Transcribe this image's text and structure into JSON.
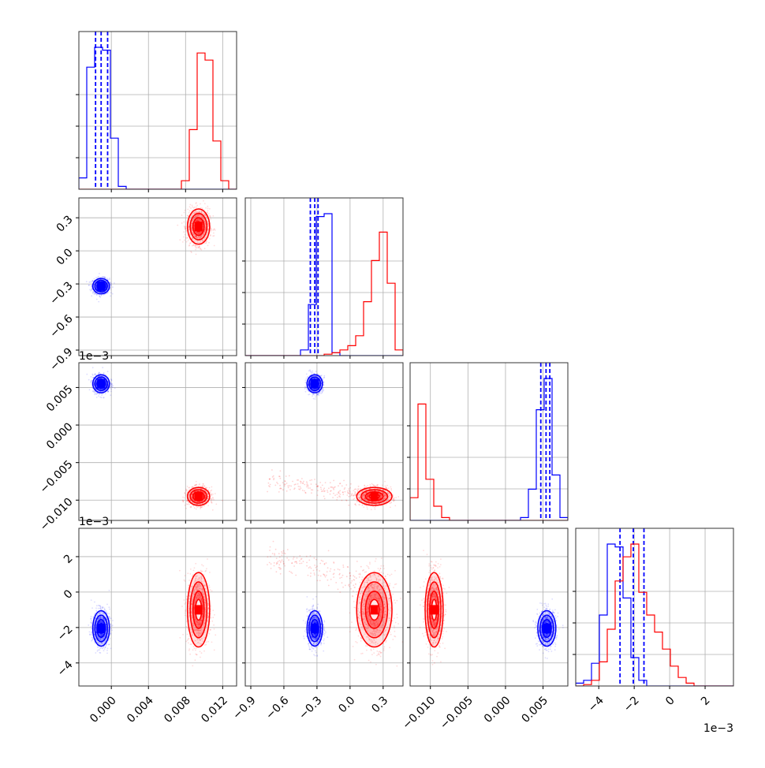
{
  "chart_data": {
    "type": "corner",
    "description_free": true,
    "parameters": [
      {
        "range": [
          -0.0035,
          0.0135
        ],
        "ticks": [
          0.0,
          0.004,
          0.008,
          0.012
        ],
        "tick_labels": [
          "0.000",
          "0.004",
          "0.008",
          "0.012"
        ],
        "offset_text": ""
      },
      {
        "range": [
          -0.95,
          0.48
        ],
        "ticks": [
          -0.9,
          -0.6,
          -0.3,
          0.0,
          0.3
        ],
        "tick_labels": [
          "−0.9",
          "−0.6",
          "−0.3",
          "0.0",
          "0.3"
        ],
        "offset_text": ""
      },
      {
        "range": [
          -0.0127,
          0.0083
        ],
        "ticks": [
          -0.01,
          -0.005,
          0.0,
          0.005
        ],
        "tick_labels": [
          "−0.010",
          "−0.005",
          "0.000",
          "0.005"
        ],
        "offset_text": "1e−3"
      },
      {
        "range": [
          -5.3,
          3.6
        ],
        "ticks": [
          -4,
          -2,
          0,
          2
        ],
        "tick_labels": [
          "−4",
          "−2",
          "0",
          "2"
        ],
        "offset_text": "1e−3"
      }
    ],
    "series": [
      {
        "color": "#0000ff",
        "means": [
          -0.0011,
          -0.32,
          0.0055,
          -2.05
        ],
        "sds": [
          0.00045,
          0.035,
          0.0006,
          0.5
        ],
        "quantile_lines": [
          [
            -0.0017,
            -0.0011,
            -0.0004
          ],
          [
            -0.36,
            -0.32,
            -0.29
          ],
          [
            0.0047,
            0.0054,
            0.0059
          ],
          [
            -2.8,
            -2.05,
            -1.45
          ]
        ],
        "hist_heights": [
          [
            0.08,
            0.86,
            1.0,
            0.98,
            0.36,
            0.02,
            0.0,
            0.0,
            0.0,
            0.0,
            0.0,
            0.0,
            0.0,
            0.0,
            0.0,
            0.0,
            0.0,
            0.0,
            0.0,
            0.0
          ],
          [
            0.0,
            0.0,
            0.0,
            0.0,
            0.0,
            0.0,
            0.0,
            0.04,
            0.36,
            0.98,
            1.0,
            0.02,
            0.0,
            0.0,
            0.0,
            0.0,
            0.0,
            0.0,
            0.0,
            0.0
          ],
          [
            0.0,
            0.0,
            0.0,
            0.0,
            0.0,
            0.0,
            0.0,
            0.0,
            0.0,
            0.0,
            0.0,
            0.0,
            0.0,
            0.0,
            0.02,
            0.22,
            0.78,
            1.0,
            0.32,
            0.02
          ],
          [
            0.02,
            0.04,
            0.16,
            0.5,
            1.0,
            0.98,
            0.62,
            0.2,
            0.04,
            0.0,
            0.0,
            0.0,
            0.0,
            0.0,
            0.0,
            0.0,
            0.0,
            0.0,
            0.0,
            0.0
          ]
        ]
      },
      {
        "color": "#ff0000",
        "means": [
          0.0094,
          0.22,
          -0.0095,
          -1.0
        ],
        "sds": [
          0.0006,
          0.08,
          0.0006,
          1.05
        ],
        "quantile_lines": [],
        "hist_heights": [
          [
            0.0,
            0.0,
            0.0,
            0.0,
            0.0,
            0.0,
            0.0,
            0.0,
            0.0,
            0.0,
            0.0,
            0.0,
            0.0,
            0.06,
            0.42,
            0.96,
            0.91,
            0.34,
            0.06,
            0.0
          ],
          [
            0.0,
            0.0,
            0.0,
            0.0,
            0.0,
            0.0,
            0.0,
            0.0,
            0.0,
            0.0,
            0.01,
            0.02,
            0.04,
            0.07,
            0.14,
            0.38,
            0.67,
            0.87,
            0.51,
            0.04
          ],
          [
            0.16,
            0.82,
            0.29,
            0.1,
            0.02,
            0.0,
            0.0,
            0.0,
            0.0,
            0.0,
            0.0,
            0.0,
            0.0,
            0.0,
            0.0,
            0.0,
            0.0,
            0.0,
            0.0,
            0.0
          ],
          [
            0.0,
            0.01,
            0.04,
            0.17,
            0.4,
            0.74,
            0.91,
            1.0,
            0.66,
            0.5,
            0.38,
            0.26,
            0.14,
            0.06,
            0.02,
            0.0,
            0.0,
            0.0,
            0.0,
            0.0
          ]
        ]
      }
    ],
    "extra_scatter": {
      "color": "#ff0000",
      "panel": [
        2,
        1
      ],
      "points_x_range": [
        -0.75,
        0.2
      ],
      "points_y_range": [
        -0.0075,
        -0.0095
      ]
    },
    "extra_scatter_2": {
      "color": "#ff0000",
      "panel": [
        3,
        1
      ],
      "points_x_range": [
        -0.75,
        0.2
      ],
      "points_y_range": [
        2.0,
        0.5
      ]
    },
    "grid": true
  }
}
